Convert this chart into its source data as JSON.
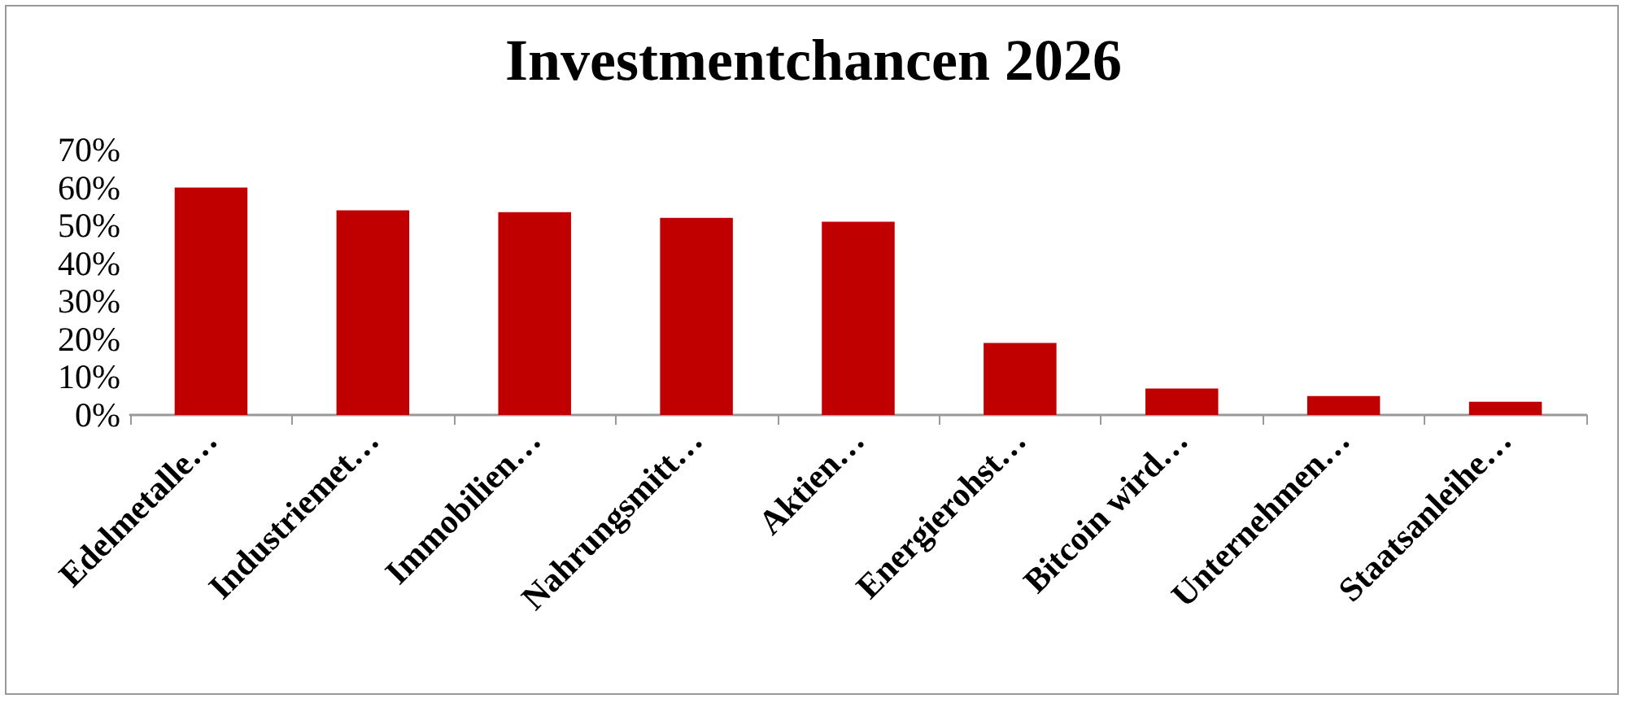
{
  "chart_data": {
    "type": "bar",
    "title": "Investmentchancen 2026",
    "categories": [
      "Edelmetalle…",
      "Industriemet…",
      "Immobilien…",
      "Nahrungsmitt…",
      "Aktien…",
      "Energierohst…",
      "Bitcoin wird…",
      "Unternehmen…",
      "Staatsanleihe…"
    ],
    "values": [
      60,
      54,
      53.5,
      52,
      51,
      19,
      7,
      5,
      3.5
    ],
    "color": "#c00000",
    "ylim": [
      0,
      70
    ],
    "yticks": [
      {
        "value": 0,
        "label": "0%"
      },
      {
        "value": 10,
        "label": "10%"
      },
      {
        "value": 20,
        "label": "20%"
      },
      {
        "value": 30,
        "label": "30%"
      },
      {
        "value": 40,
        "label": "40%"
      },
      {
        "value": 50,
        "label": "50%"
      },
      {
        "value": 60,
        "label": "60%"
      },
      {
        "value": 70,
        "label": "70%"
      }
    ],
    "grid": false
  }
}
